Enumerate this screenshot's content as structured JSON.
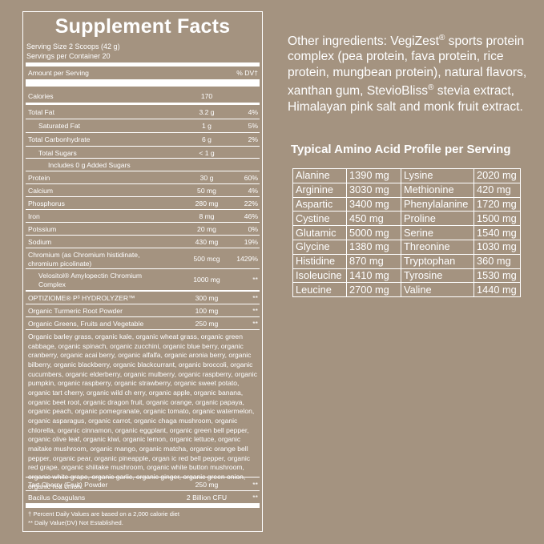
{
  "facts": {
    "title": "Supplement Facts",
    "serving_size": "Serving Size 2 Scoops (42 g)",
    "servings_per_container": "Servings per Container 20",
    "header_amount": "Amount per Serving",
    "header_dv": "% DV†",
    "rows": [
      {
        "label": "Calories",
        "amount": "170",
        "dv": ""
      },
      {
        "label": "Total Fat",
        "amount": "3.2 g",
        "dv": "4%"
      },
      {
        "label": "Saturated Fat",
        "amount": "1 g",
        "dv": "5%"
      },
      {
        "label": "Total Carbonhydrate",
        "amount": "6 g",
        "dv": "2%"
      },
      {
        "label": "Total Sugars",
        "amount": "< 1 g",
        "dv": ""
      },
      {
        "label": "Includes 0 g Added Sugars",
        "amount": "",
        "dv": ""
      },
      {
        "label": "Protein",
        "amount": "30 g",
        "dv": "60%"
      },
      {
        "label": "Calcium",
        "amount": "50 mg",
        "dv": "4%"
      },
      {
        "label": "Phosphorus",
        "amount": "280 mg",
        "dv": "22%"
      },
      {
        "label": "Iron",
        "amount": "8 mg",
        "dv": "46%"
      },
      {
        "label": "Potssium",
        "amount": "20 mg",
        "dv": "0%"
      },
      {
        "label": "Sodium",
        "amount": "430 mg",
        "dv": "19%"
      },
      {
        "label": "Chromium (as Chromium histidinate, chromium picolinate)",
        "amount": "500 mcg",
        "dv": "1429%"
      },
      {
        "label": "Velositol® Amylopectin Chromium Complex",
        "amount": "1000 mg",
        "dv": "**"
      },
      {
        "label": "OPTIZIOME® P³ HYDROLYZER™",
        "amount": "300 mg",
        "dv": "**"
      },
      {
        "label": "Organic Turmeric Root Powder",
        "amount": "100 mg",
        "dv": "**"
      },
      {
        "label": "Organic Greens, Fruits and Vegetable",
        "amount": "250 mg",
        "dv": "**"
      },
      {
        "label": "Tart Cherry (Fruit) Powder",
        "amount": "250 mg",
        "dv": "**"
      },
      {
        "label": "Bacilus Coagulans",
        "amount": "2 Billion CFU",
        "dv": "**"
      }
    ],
    "greens_text": "Organic barley grass, organic kale, organic wheat grass, organic green cabbage, organic spinach, organic zucchini, organic blue berry, organic cranberry, organic acai berry, organic alfalfa, organic aronia berry, organic bilberry, organic blackberry, organic blackcurrant, organic broccoli, organic cucumbers, organic elderberry, organic mulberry, organic raspberry, organic pumpkin, organic raspberry, organic strawberry, organic sweet potato, organic tart cherry, organic wild ch erry, organic apple, organic banana, organic beet root, organic dragon fruit, organic orange, organic papaya, organic peach, organic pomegranate, organic tomato, organic watermelon, organic asparagus, organic carrot, organic chaga mushroom, organic chlorella, organic cinnamon, organic eggplant, organic green bell pepper, organic olive leaf, organic kiwi, organic lemon, organic lettuce, organic maitake mushroom, organic mango, organic matcha, organic orange bell pepper, organic pear, organic pineapple, organ ic red bell pepper, organic red grape, organic shiitake mushroom, organic white button mushroom, organic white grape, organic garlic, organic ginger, organic green onion, organic red onion.",
    "footnote1": "† Percent Daily Values are based on a 2,000 calorie diet",
    "footnote2": "** Daily Value(DV) Not Established."
  },
  "other_ingredients": {
    "p1": "Other ingredients: VegiZest",
    "p2": " sports protein complex (pea protein, fava protein, rice protein, mungbean protein), natural flavors, xanthan gum, StevioBliss",
    "p3": " stevia extract, Himalayan pink salt and monk fruit extract.",
    "reg": "®"
  },
  "amino": {
    "title": "Typical Amino Acid Profile per Serving",
    "rows": [
      [
        "Alanine",
        "1390 mg",
        "Lysine",
        "2020 mg"
      ],
      [
        "Arginine",
        "3030 mg",
        "Methionine",
        "420 mg"
      ],
      [
        "Aspartic",
        "3400 mg",
        "Phenylalanine",
        "1720 mg"
      ],
      [
        "Cystine",
        "450 mg",
        "Proline",
        "1500 mg"
      ],
      [
        "Glutamic",
        "5000 mg",
        "Serine",
        "1540 mg"
      ],
      [
        "Glycine",
        "1380 mg",
        "Threonine",
        "1030 mg"
      ],
      [
        "Histidine",
        "870 mg",
        "Tryptophan",
        "360 mg"
      ],
      [
        "Isoleucine",
        "1410 mg",
        "Tyrosine",
        "1530 mg"
      ],
      [
        "Leucine",
        "2700 mg",
        "Valine",
        "1440 mg"
      ]
    ]
  },
  "colors": {
    "background": "#a49380",
    "text": "#ffffff"
  }
}
